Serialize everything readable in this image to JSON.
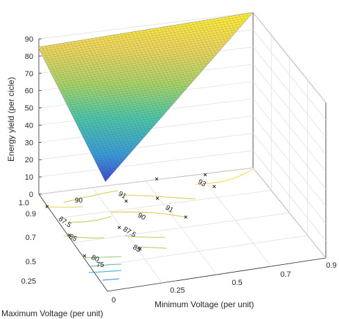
{
  "chart_data": {
    "type": "surface",
    "title": "",
    "zlabel": "Energy yield (per cicle)",
    "xlabel": "Minimum Voltage (per unit)",
    "ylabel": "Maximum Voltage (per unit)",
    "xlim": [
      0,
      0.9
    ],
    "ylim": [
      0.25,
      1.0
    ],
    "zlim": [
      0,
      90
    ],
    "x_ticks": [
      "0",
      "0.25",
      "0.5",
      "0.7",
      "0.9"
    ],
    "y_ticks": [
      "0.25",
      "0.5",
      "0.7",
      "0.9",
      "1.0"
    ],
    "z_ticks": [
      "0",
      "10",
      "20",
      "30",
      "40",
      "50",
      "60",
      "70",
      "80",
      "90"
    ],
    "grid": true,
    "colormap": "parula",
    "surface_corners": [
      {
        "x_min_v": 0,
        "y_max_v": 1.0,
        "z": 85
      },
      {
        "x_min_v": 0.9,
        "y_max_v": 1.0,
        "z": 92
      },
      {
        "x_min_v": 0,
        "y_max_v": 0.25,
        "z": 8
      }
    ],
    "contour_levels": [
      "75",
      "80",
      "85",
      "87.5",
      "90",
      "91",
      "93"
    ],
    "contour_labels": [
      {
        "text": "90"
      },
      {
        "text": "91"
      },
      {
        "text": "87.5"
      },
      {
        "text": "85"
      },
      {
        "text": "80"
      },
      {
        "text": "75"
      },
      {
        "text": "91"
      },
      {
        "text": "90"
      },
      {
        "text": "87.5"
      },
      {
        "text": "85"
      },
      {
        "text": "93"
      }
    ]
  }
}
